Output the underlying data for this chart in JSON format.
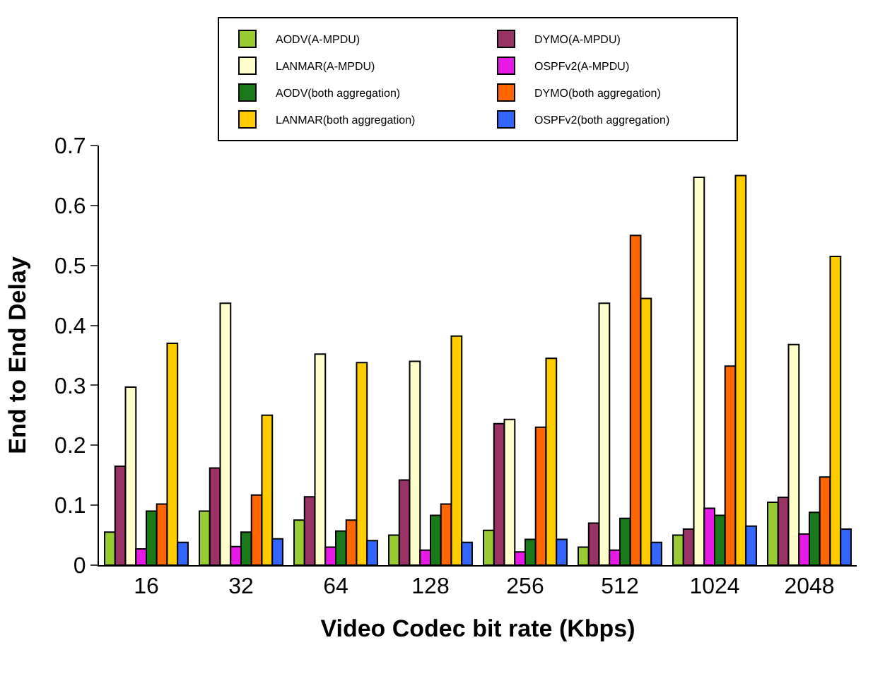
{
  "chart_data": {
    "type": "bar",
    "xlabel": "Video Codec bit rate (Kbps)",
    "ylabel": "End to End Delay",
    "categories": [
      "16",
      "32",
      "64",
      "128",
      "256",
      "512",
      "1024",
      "2048"
    ],
    "series": [
      {
        "name": "AODV(A-MPDU)",
        "color": "#99cc33",
        "values": [
          0.055,
          0.09,
          0.075,
          0.05,
          0.058,
          0.03,
          0.05,
          0.105
        ]
      },
      {
        "name": "DYMO(A-MPDU)",
        "color": "#993366",
        "values": [
          0.165,
          0.162,
          0.114,
          0.142,
          0.236,
          0.07,
          0.06,
          0.113
        ]
      },
      {
        "name": "LANMAR(A-MPDU)",
        "color": "#ffffcc",
        "values": [
          0.297,
          0.437,
          0.352,
          0.34,
          0.243,
          0.437,
          0.647,
          0.368
        ]
      },
      {
        "name": "OSPFv2(A-MPDU)",
        "color": "#e619e6",
        "values": [
          0.027,
          0.031,
          0.03,
          0.025,
          0.022,
          0.025,
          0.095,
          0.052
        ]
      },
      {
        "name": "AODV(both aggregation)",
        "color": "#1a7a1a",
        "values": [
          0.09,
          0.055,
          0.057,
          0.083,
          0.043,
          0.078,
          0.083,
          0.088
        ]
      },
      {
        "name": "DYMO(both aggregation)",
        "color": "#ff6600",
        "values": [
          0.102,
          0.117,
          0.075,
          0.102,
          0.23,
          0.55,
          0.332,
          0.147
        ]
      },
      {
        "name": "LANMAR(both aggregation)",
        "color": "#ffcc00",
        "values": [
          0.37,
          0.25,
          0.338,
          0.382,
          0.345,
          0.445,
          0.65,
          0.515
        ]
      },
      {
        "name": "OSPFv2(both aggregation)",
        "color": "#3366ff",
        "values": [
          0.038,
          0.044,
          0.041,
          0.038,
          0.043,
          0.038,
          0.065,
          0.06
        ]
      }
    ],
    "ylim": [
      0,
      0.7
    ],
    "yticks": [
      0,
      0.1,
      0.2,
      0.3,
      0.4,
      0.5,
      0.6,
      0.7
    ],
    "legend": "top"
  }
}
